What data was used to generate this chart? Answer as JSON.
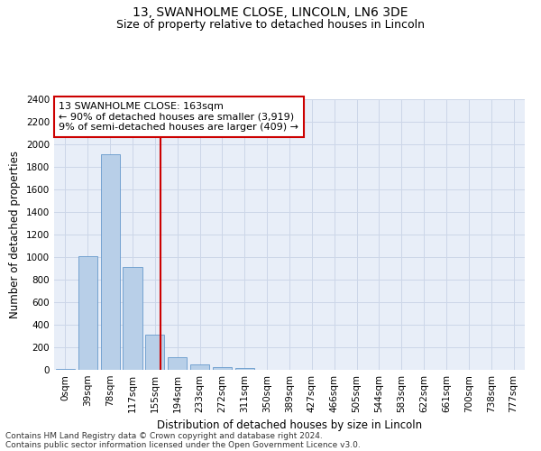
{
  "title": "13, SWANHOLME CLOSE, LINCOLN, LN6 3DE",
  "subtitle": "Size of property relative to detached houses in Lincoln",
  "xlabel": "Distribution of detached houses by size in Lincoln",
  "ylabel": "Number of detached properties",
  "categories": [
    "0sqm",
    "39sqm",
    "78sqm",
    "117sqm",
    "155sqm",
    "194sqm",
    "233sqm",
    "272sqm",
    "311sqm",
    "350sqm",
    "389sqm",
    "427sqm",
    "466sqm",
    "505sqm",
    "544sqm",
    "583sqm",
    "622sqm",
    "661sqm",
    "700sqm",
    "738sqm",
    "777sqm"
  ],
  "values": [
    10,
    1010,
    1910,
    915,
    315,
    110,
    45,
    22,
    16,
    0,
    0,
    0,
    0,
    0,
    0,
    0,
    0,
    0,
    0,
    0,
    0
  ],
  "bar_color": "#b8cfe8",
  "bar_edge_color": "#6699cc",
  "vline_x_index": 4.25,
  "vline_color": "#cc0000",
  "annotation_line1": "13 SWANHOLME CLOSE: 163sqm",
  "annotation_line2": "← 90% of detached houses are smaller (3,919)",
  "annotation_line3": "9% of semi-detached houses are larger (409) →",
  "annotation_box_color": "#ffffff",
  "annotation_box_edge_color": "#cc0000",
  "ylim": [
    0,
    2400
  ],
  "yticks": [
    0,
    200,
    400,
    600,
    800,
    1000,
    1200,
    1400,
    1600,
    1800,
    2000,
    2200,
    2400
  ],
  "grid_color": "#ccd6e8",
  "background_color": "#e8eef8",
  "footer_line1": "Contains HM Land Registry data © Crown copyright and database right 2024.",
  "footer_line2": "Contains public sector information licensed under the Open Government Licence v3.0.",
  "title_fontsize": 10,
  "subtitle_fontsize": 9,
  "axis_label_fontsize": 8.5,
  "tick_fontsize": 7.5,
  "annotation_fontsize": 8
}
